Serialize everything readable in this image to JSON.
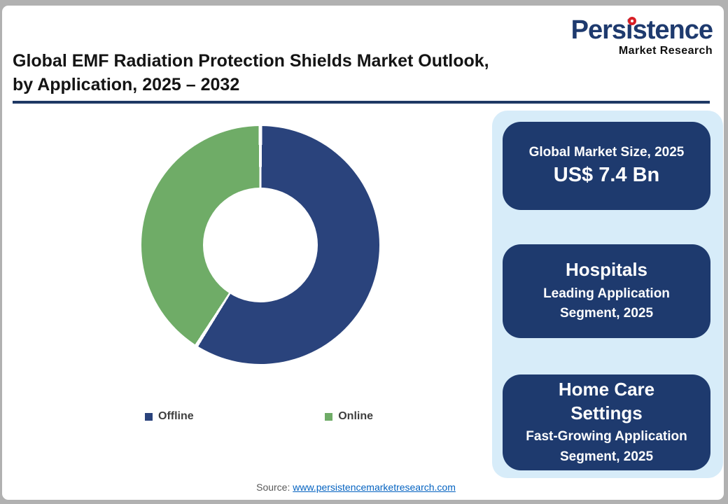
{
  "logo": {
    "name": "Persistence",
    "tagline": "Market Research",
    "accent_color": "#d81f26",
    "name_color": "#1e3a6e"
  },
  "header": {
    "title": "Global EMF Radiation Protection Shields Market Outlook,\nby Application, 2025 – 2032",
    "rule_color": "#1f3864"
  },
  "chart_data": {
    "type": "pie",
    "subtype": "donut",
    "title": "Global EMF Radiation Protection Shields Market Outlook, by Application, 2025 – 2032",
    "categories": [
      "Offline",
      "Online"
    ],
    "values": [
      59,
      41
    ],
    "unit": "%",
    "colors": [
      "#2a437c",
      "#6fac67"
    ],
    "legend_position": "bottom",
    "donut_hole_ratio": 0.48
  },
  "legend": {
    "items": [
      {
        "label": "Offline",
        "color": "#2a437c"
      },
      {
        "label": "Online",
        "color": "#6fac67"
      }
    ]
  },
  "sidebar": {
    "panel_color": "#d7ecf9",
    "box_color": "#1e3a6e",
    "boxes": [
      {
        "label": "Global Market Size, 2025",
        "value": "US$ 7.4 Bn"
      },
      {
        "heading": "Hospitals",
        "caption": "Leading Application Segment, 2025"
      },
      {
        "heading": "Home Care Settings",
        "caption": "Fast-Growing Application Segment, 2025"
      }
    ]
  },
  "footer": {
    "source_label": "Source:",
    "source_link": "www.persistencemarketresearch.com"
  }
}
